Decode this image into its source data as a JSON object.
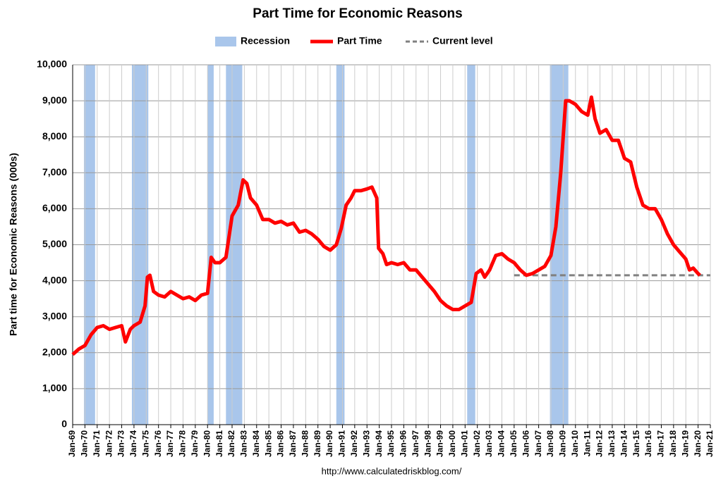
{
  "chart_data": {
    "type": "line",
    "title": "Part Time for Economic Reasons",
    "y_label": "Part time for Economic Reasons (000s)",
    "source": "http://www.calculatedriskblog.com/",
    "recessions": {
      "name": "Recession",
      "color": "#a9c6eb",
      "values": [
        [
          1969.92,
          1970.83
        ],
        [
          1973.83,
          1975.17
        ],
        [
          1980.0,
          1980.5
        ],
        [
          1981.5,
          1982.83
        ],
        [
          1990.5,
          1991.17
        ],
        [
          2001.17,
          2001.83
        ],
        [
          2007.92,
          2009.42
        ]
      ]
    },
    "series": [
      {
        "name": "Part Time",
        "color": "#ff0000",
        "dash": false,
        "x": [
          1969.0,
          1969.5,
          1970.0,
          1970.5,
          1971.0,
          1971.5,
          1972.0,
          1972.5,
          1973.0,
          1973.3,
          1973.7,
          1974.0,
          1974.5,
          1974.9,
          1975.1,
          1975.3,
          1975.6,
          1976.0,
          1976.5,
          1977.0,
          1977.5,
          1978.0,
          1978.5,
          1979.0,
          1979.5,
          1980.0,
          1980.3,
          1980.6,
          1981.0,
          1981.5,
          1982.0,
          1982.5,
          1982.9,
          1983.2,
          1983.5,
          1984.0,
          1984.5,
          1985.0,
          1985.5,
          1986.0,
          1986.5,
          1987.0,
          1987.5,
          1988.0,
          1988.5,
          1989.0,
          1989.5,
          1990.0,
          1990.5,
          1990.9,
          1991.3,
          1991.7,
          1992.0,
          1992.5,
          1993.0,
          1993.4,
          1993.8,
          1993.95,
          1994.3,
          1994.6,
          1995.0,
          1995.5,
          1996.0,
          1996.5,
          1997.0,
          1997.5,
          1998.0,
          1998.5,
          1999.0,
          1999.5,
          2000.0,
          2000.5,
          2001.0,
          2001.5,
          2001.9,
          2002.3,
          2002.6,
          2003.0,
          2003.5,
          2004.0,
          2004.5,
          2005.0,
          2005.5,
          2006.0,
          2006.5,
          2007.0,
          2007.5,
          2008.0,
          2008.4,
          2008.8,
          2009.0,
          2009.2,
          2009.5,
          2010.0,
          2010.5,
          2011.0,
          2011.3,
          2011.6,
          2012.0,
          2012.5,
          2013.0,
          2013.5,
          2014.0,
          2014.5,
          2015.0,
          2015.5,
          2016.0,
          2016.5,
          2017.0,
          2017.5,
          2018.0,
          2018.5,
          2019.0,
          2019.3,
          2019.6,
          2020.0,
          2020.15
        ],
        "values": [
          1950,
          2100,
          2200,
          2500,
          2700,
          2750,
          2650,
          2700,
          2750,
          2300,
          2650,
          2750,
          2850,
          3300,
          4100,
          4150,
          3700,
          3600,
          3550,
          3700,
          3600,
          3500,
          3550,
          3450,
          3600,
          3650,
          4650,
          4500,
          4500,
          4650,
          5800,
          6100,
          6800,
          6700,
          6300,
          6100,
          5700,
          5700,
          5600,
          5650,
          5550,
          5600,
          5350,
          5400,
          5300,
          5150,
          4950,
          4850,
          5000,
          5450,
          6100,
          6300,
          6500,
          6500,
          6550,
          6600,
          6300,
          4900,
          4750,
          4450,
          4500,
          4450,
          4500,
          4300,
          4300,
          4100,
          3900,
          3700,
          3450,
          3300,
          3200,
          3200,
          3300,
          3400,
          4200,
          4300,
          4100,
          4300,
          4700,
          4750,
          4600,
          4500,
          4300,
          4150,
          4200,
          4300,
          4400,
          4700,
          5500,
          7000,
          8000,
          9000,
          9000,
          8900,
          8700,
          8600,
          9100,
          8500,
          8100,
          8200,
          7900,
          7900,
          7400,
          7300,
          6600,
          6100,
          6000,
          6000,
          5700,
          5300,
          5000,
          4800,
          4600,
          4300,
          4350,
          4200,
          4150
        ]
      },
      {
        "name": "Current level",
        "color": "#808080",
        "dash": true,
        "x": [
          2005.0,
          2021.0
        ],
        "values": [
          4150,
          4150
        ]
      }
    ],
    "xlim": [
      1969,
      2021
    ],
    "xticks": [
      {
        "value": 1969,
        "label": "Jan-69"
      },
      {
        "value": 1970,
        "label": "Jan-70"
      },
      {
        "value": 1971,
        "label": "Jan-71"
      },
      {
        "value": 1972,
        "label": "Jan-72"
      },
      {
        "value": 1973,
        "label": "Jan-73"
      },
      {
        "value": 1974,
        "label": "Jan-74"
      },
      {
        "value": 1975,
        "label": "Jan-75"
      },
      {
        "value": 1976,
        "label": "Jan-76"
      },
      {
        "value": 1977,
        "label": "Jan-77"
      },
      {
        "value": 1978,
        "label": "Jan-78"
      },
      {
        "value": 1979,
        "label": "Jan-79"
      },
      {
        "value": 1980,
        "label": "Jan-80"
      },
      {
        "value": 1981,
        "label": "Jan-81"
      },
      {
        "value": 1982,
        "label": "Jan-82"
      },
      {
        "value": 1983,
        "label": "Jan-83"
      },
      {
        "value": 1984,
        "label": "Jan-84"
      },
      {
        "value": 1985,
        "label": "Jan-85"
      },
      {
        "value": 1986,
        "label": "Jan-86"
      },
      {
        "value": 1987,
        "label": "Jan-87"
      },
      {
        "value": 1988,
        "label": "Jan-88"
      },
      {
        "value": 1989,
        "label": "Jan-89"
      },
      {
        "value": 1990,
        "label": "Jan-90"
      },
      {
        "value": 1991,
        "label": "Jan-91"
      },
      {
        "value": 1992,
        "label": "Jan-92"
      },
      {
        "value": 1993,
        "label": "Jan-93"
      },
      {
        "value": 1994,
        "label": "Jan-94"
      },
      {
        "value": 1995,
        "label": "Jan-95"
      },
      {
        "value": 1996,
        "label": "Jan-96"
      },
      {
        "value": 1997,
        "label": "Jan-97"
      },
      {
        "value": 1998,
        "label": "Jan-98"
      },
      {
        "value": 1999,
        "label": "Jan-99"
      },
      {
        "value": 2000,
        "label": "Jan-00"
      },
      {
        "value": 2001,
        "label": "Jan-01"
      },
      {
        "value": 2002,
        "label": "Jan-02"
      },
      {
        "value": 2003,
        "label": "Jan-03"
      },
      {
        "value": 2004,
        "label": "Jan-04"
      },
      {
        "value": 2005,
        "label": "Jan-05"
      },
      {
        "value": 2006,
        "label": "Jan-06"
      },
      {
        "value": 2007,
        "label": "Jan-07"
      },
      {
        "value": 2008,
        "label": "Jan-08"
      },
      {
        "value": 2009,
        "label": "Jan-09"
      },
      {
        "value": 2010,
        "label": "Jan-10"
      },
      {
        "value": 2011,
        "label": "Jan-11"
      },
      {
        "value": 2012,
        "label": "Jan-12"
      },
      {
        "value": 2013,
        "label": "Jan-13"
      },
      {
        "value": 2014,
        "label": "Jan-14"
      },
      {
        "value": 2015,
        "label": "Jan-15"
      },
      {
        "value": 2016,
        "label": "Jan-16"
      },
      {
        "value": 2017,
        "label": "Jan-17"
      },
      {
        "value": 2018,
        "label": "Jan-18"
      },
      {
        "value": 2019,
        "label": "Jan-19"
      },
      {
        "value": 2020,
        "label": "Jan-20"
      },
      {
        "value": 2021,
        "label": "Jan-21"
      }
    ],
    "ylim": [
      0,
      10000
    ],
    "yticks": [
      0,
      {
        "value": 1000,
        "label": "1,000"
      },
      {
        "value": 2000,
        "label": "2,000"
      },
      {
        "value": 3000,
        "label": "3,000"
      },
      {
        "value": 4000,
        "label": "4,000"
      },
      {
        "value": 5000,
        "label": "5,000"
      },
      {
        "value": 6000,
        "label": "6,000"
      },
      {
        "value": 7000,
        "label": "7,000"
      },
      {
        "value": 8000,
        "label": "8,000"
      },
      {
        "value": 9000,
        "label": "9,000"
      },
      {
        "value": 10000,
        "label": "10,000"
      }
    ],
    "grid": true
  }
}
